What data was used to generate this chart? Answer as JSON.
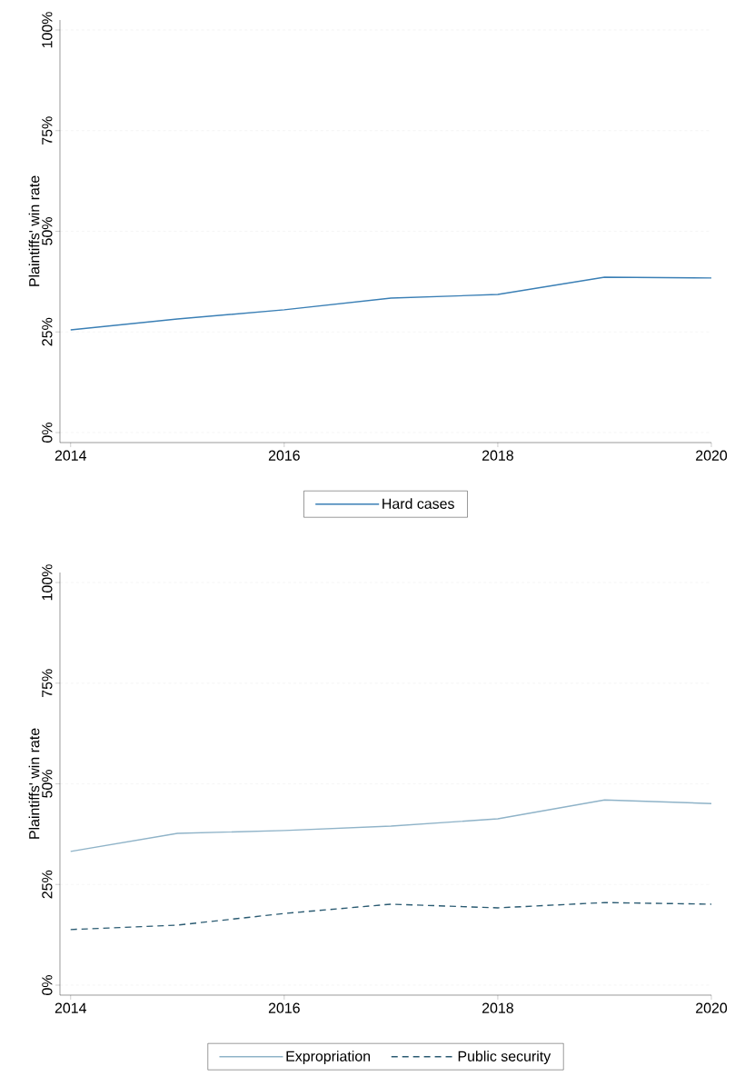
{
  "chart_data": [
    {
      "type": "line",
      "ylabel": "Plaintiffs' win rate",
      "x": [
        2014,
        2015,
        2016,
        2017,
        2018,
        2019,
        2020
      ],
      "series": [
        {
          "name": "Hard cases",
          "color": "#3a7fb5",
          "values": [
            25.5,
            28.2,
            30.5,
            33.4,
            34.3,
            38.6,
            38.4
          ]
        }
      ],
      "xlim": [
        2013.9,
        2020
      ],
      "xticks": [
        2014,
        2016,
        2018,
        2020
      ],
      "ylim": [
        0,
        100
      ],
      "yticks": [
        {
          "value": 0,
          "label": "0%"
        },
        {
          "value": 25,
          "label": "25%"
        },
        {
          "value": 50,
          "label": "50%"
        },
        {
          "value": 75,
          "label": "75%"
        },
        {
          "value": 100,
          "label": "100%"
        }
      ],
      "grid": "y",
      "legend": "bottom"
    },
    {
      "type": "line",
      "ylabel": "Plaintiffs' win rate",
      "x": [
        2014,
        2015,
        2016,
        2017,
        2018,
        2019,
        2020
      ],
      "series": [
        {
          "name": "Expropriation",
          "color": "#8fb3c8",
          "values": [
            33.2,
            37.7,
            38.4,
            39.5,
            41.3,
            46.0,
            45.1
          ]
        },
        {
          "name": "Public security",
          "color": "#2b5b72",
          "line_style": "dashed",
          "values": [
            13.8,
            14.9,
            17.8,
            20.1,
            19.2,
            20.5,
            20.1
          ]
        }
      ],
      "xlim": [
        2013.9,
        2020
      ],
      "xticks": [
        2014,
        2016,
        2018,
        2020
      ],
      "ylim": [
        0,
        100
      ],
      "yticks": [
        {
          "value": 0,
          "label": "0%"
        },
        {
          "value": 25,
          "label": "25%"
        },
        {
          "value": 50,
          "label": "50%"
        },
        {
          "value": 75,
          "label": "75%"
        },
        {
          "value": 100,
          "label": "100%"
        }
      ],
      "grid": "y",
      "legend": "bottom"
    }
  ]
}
